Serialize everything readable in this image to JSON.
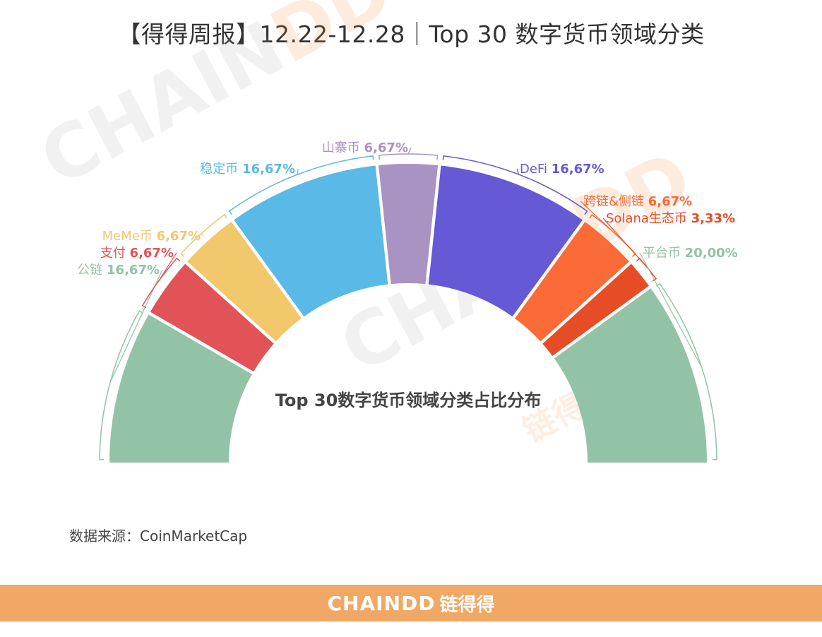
{
  "header": {
    "title": "【得得周报】12.22-12.28｜Top 30 数字货币领域分类"
  },
  "watermark": {
    "text_grey": "CHAIN",
    "text_orange": "DD",
    "text_cn": "链得得"
  },
  "chart_data": {
    "type": "pie",
    "variant": "half-donut",
    "center_label": "Top 30数字货币领域分类占比分布",
    "slices": [
      {
        "name": "公链",
        "value": 16.67,
        "value_label": "16,67%",
        "color": "#92c3a7"
      },
      {
        "name": "支付",
        "value": 6.67,
        "value_label": "6,67%",
        "color": "#e15356"
      },
      {
        "name": "MeMe币",
        "value": 6.67,
        "value_label": "6,67%",
        "color": "#f2c86c"
      },
      {
        "name": "稳定币",
        "value": 16.67,
        "value_label": "16,67%",
        "color": "#5ab9e6"
      },
      {
        "name": "山寨币",
        "value": 6.67,
        "value_label": "6,67%",
        "color": "#a993c3"
      },
      {
        "name": "DeFi",
        "value": 16.67,
        "value_label": "16,67%",
        "color": "#6659d6"
      },
      {
        "name": "跨链&侧链",
        "value": 6.67,
        "value_label": "6,67%",
        "color": "#fb6b38"
      },
      {
        "name": "Solana生态币",
        "value": 3.33,
        "value_label": "3,33%",
        "color": "#e64c26"
      },
      {
        "name": "平台币",
        "value": 20.0,
        "value_label": "20,00%",
        "color": "#92c3a7"
      }
    ]
  },
  "footer": {
    "source_note": "数据来源：CoinMarketCap",
    "brand": "CHAINDD",
    "brand_cn": "链得得",
    "bar_color": "#f0a864"
  }
}
